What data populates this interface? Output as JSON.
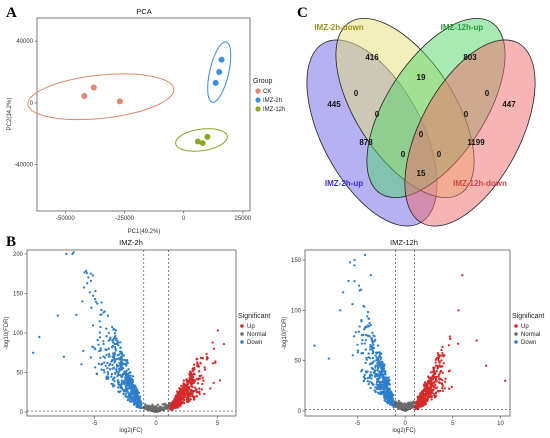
{
  "panels": {
    "a": "A",
    "b": "B",
    "c": "C"
  },
  "colors": {
    "ck": "#e0876f",
    "imz2h": "#3a8fd6",
    "imz12h": "#8aa822",
    "up": "#d62a2a",
    "normal": "#6b6b6b",
    "down": "#2e7fc8",
    "venn_a": "#6b63e8",
    "venn_b": "#e6e07a",
    "venn_c": "#52d46a",
    "venn_d": "#f06a6a"
  },
  "chart_data": [
    {
      "type": "scatter",
      "title": "PCA",
      "xlabel": "PC1(49.2%)",
      "ylabel": "PC2(34.2%)",
      "xlim": [
        -62000,
        28000
      ],
      "ylim": [
        -70000,
        55000
      ],
      "xticks": [
        -50000,
        -25000,
        0,
        25000
      ],
      "xtick_labels": [
        "-50000",
        "-25000",
        "0",
        "25000"
      ],
      "yticks": [
        -40000,
        0,
        40000
      ],
      "ytick_labels": [
        "-40000",
        "0",
        "40000"
      ],
      "legend": {
        "title": "Group",
        "position": "right"
      },
      "series": [
        {
          "name": "CK",
          "color_key": "ck",
          "points": [
            [
              -42000,
              4500
            ],
            [
              -38000,
              10000
            ],
            [
              -27000,
              1000
            ]
          ],
          "ellipse": {
            "cx": -35000,
            "cy": 4000,
            "rx": 31000,
            "ry": 14000,
            "angle_deg": -6
          }
        },
        {
          "name": "IMZ-2h",
          "color_key": "imz2h",
          "points": [
            [
              16000,
              28000
            ],
            [
              15000,
              20000
            ],
            [
              13500,
              13000
            ]
          ],
          "ellipse": {
            "cx": 15000,
            "cy": 20000,
            "rx": 4000,
            "ry": 20000,
            "angle_deg": 13
          }
        },
        {
          "name": "IMZ-12h",
          "color_key": "imz12h",
          "points": [
            [
              6000,
              -25000
            ],
            [
              8000,
              -26000
            ],
            [
              10000,
              -22000
            ]
          ],
          "ellipse": {
            "cx": 7500,
            "cy": -24000,
            "rx": 11000,
            "ry": 7000,
            "angle_deg": -8
          }
        }
      ]
    },
    {
      "type": "scatter",
      "title": "IMZ-2h",
      "xlabel": "log2(FC)",
      "ylabel": "-log10(FDR)",
      "xlim": [
        -10.5,
        6.5
      ],
      "ylim": [
        -5,
        205
      ],
      "xticks": [
        -5,
        0,
        5
      ],
      "xtick_labels": [
        "-5",
        "0",
        "5"
      ],
      "yticks": [
        0,
        50,
        100,
        150,
        200
      ],
      "ytick_labels": [
        "0",
        "50",
        "100",
        "150",
        "200"
      ],
      "vlines": [
        -1,
        1
      ],
      "hline": 1.3,
      "legend": {
        "title": "Significant",
        "position": "right",
        "labels": [
          "Up",
          "Normal",
          "Down"
        ]
      },
      "down_seed": 17,
      "up_seed": 29,
      "normal_seed": 41,
      "down_outliers": [
        [
          -7.3,
          200
        ],
        [
          -6.8,
          200
        ],
        [
          -5.6,
          163
        ],
        [
          -8,
          122
        ],
        [
          -9.5,
          95
        ],
        [
          -10,
          75
        ],
        [
          -7.5,
          70
        ],
        [
          -6,
          140
        ]
      ],
      "up_outliers": [
        [
          4.7,
          80
        ],
        [
          3.6,
          62
        ],
        [
          5.2,
          40
        ],
        [
          4.2,
          68
        ]
      ]
    },
    {
      "type": "scatter",
      "title": "IMZ-12h",
      "xlabel": "log2(FC)",
      "ylabel": "-log10(FDR)",
      "xlim": [
        -10.5,
        11
      ],
      "ylim": [
        -5,
        160
      ],
      "xticks": [
        -5,
        0,
        5,
        10
      ],
      "xtick_labels": [
        "-5",
        "0",
        "5",
        "10"
      ],
      "yticks": [
        0,
        50,
        100,
        150
      ],
      "ytick_labels": [
        "0",
        "50",
        "100",
        "150"
      ],
      "vlines": [
        -1,
        1
      ],
      "hline": 1.3,
      "legend": {
        "title": "Significant",
        "position": "right",
        "labels": [
          "Up",
          "Normal",
          "Down"
        ]
      },
      "down_seed": 53,
      "up_seed": 67,
      "normal_seed": 79,
      "down_outliers": [
        [
          -5.3,
          150
        ],
        [
          -4.2,
          155
        ],
        [
          -3.6,
          135
        ],
        [
          -6.8,
          100
        ],
        [
          -9.5,
          65
        ],
        [
          -8,
          52
        ],
        [
          -6.5,
          118
        ]
      ],
      "up_outliers": [
        [
          6,
          135
        ],
        [
          5.6,
          100
        ],
        [
          8.5,
          45
        ],
        [
          10.5,
          30
        ],
        [
          7.5,
          70
        ]
      ]
    },
    {
      "type": "venn",
      "sets": [
        "IMZ-2h-up",
        "IMZ-2h-down",
        "IMZ-12h-up",
        "IMZ-12h-down"
      ],
      "regions": [
        {
          "sets": [
            "IMZ-2h-up"
          ],
          "value": 445
        },
        {
          "sets": [
            "IMZ-2h-down"
          ],
          "value": 416
        },
        {
          "sets": [
            "IMZ-12h-up"
          ],
          "value": 803
        },
        {
          "sets": [
            "IMZ-12h-down"
          ],
          "value": 447
        },
        {
          "sets": [
            "IMZ-2h-down",
            "IMZ-12h-up"
          ],
          "value": 19
        },
        {
          "sets": [
            "IMZ-2h-up",
            "IMZ-2h-down"
          ],
          "value": 0
        },
        {
          "sets": [
            "IMZ-12h-up",
            "IMZ-12h-down"
          ],
          "value": 0
        },
        {
          "sets": [
            "IMZ-2h-up",
            "IMZ-2h-down",
            "IMZ-12h-up"
          ],
          "value": 0
        },
        {
          "sets": [
            "IMZ-2h-down",
            "IMZ-12h-up",
            "IMZ-12h-down"
          ],
          "value": 0
        },
        {
          "sets": [
            "IMZ-2h-up",
            "IMZ-12h-up"
          ],
          "value": 878
        },
        {
          "sets": [
            "IMZ-2h-up",
            "IMZ-2h-down",
            "IMZ-12h-up",
            "IMZ-12h-down"
          ],
          "value": 0
        },
        {
          "sets": [
            "IMZ-2h-down",
            "IMZ-12h-down"
          ],
          "value": 1199
        },
        {
          "sets": [
            "IMZ-2h-up",
            "IMZ-12h-up",
            "IMZ-12h-down"
          ],
          "value": 0
        },
        {
          "sets": [
            "IMZ-2h-up",
            "IMZ-2h-down",
            "IMZ-12h-down"
          ],
          "value": 0
        },
        {
          "sets": [
            "IMZ-2h-up",
            "IMZ-12h-down"
          ],
          "value": 15
        }
      ]
    }
  ]
}
